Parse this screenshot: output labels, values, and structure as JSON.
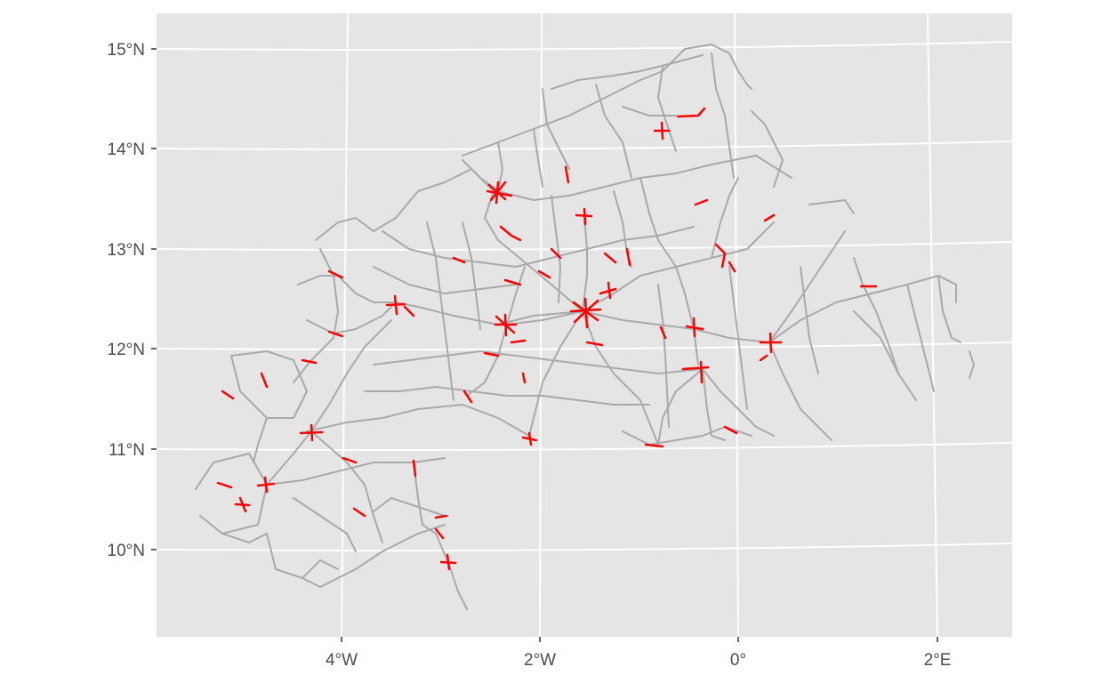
{
  "map": {
    "panel_background": "#e5e5e5",
    "grid_color": "#ffffff",
    "road_color": "#a9a9a9",
    "highlight_color": "#ff0000",
    "lat_labels": [
      "15°N",
      "14°N",
      "13°N",
      "12°N",
      "11°N",
      "10°N"
    ],
    "lon_labels": [
      "4°W",
      "2°W",
      "0°",
      "2°E"
    ]
  }
}
